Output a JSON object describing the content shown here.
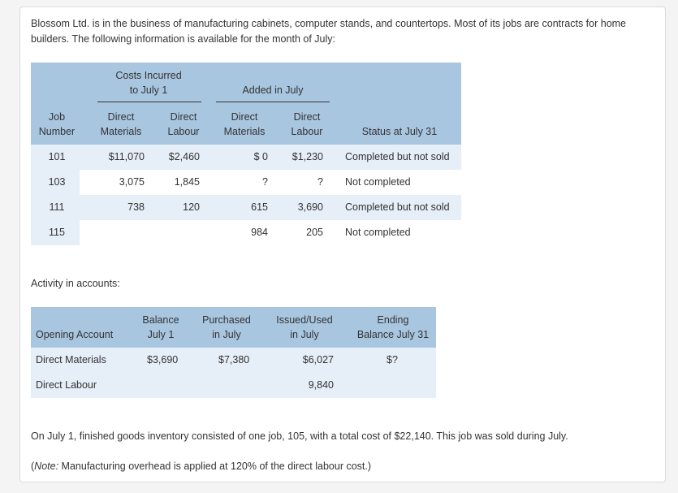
{
  "intro": "Blossom Ltd. is in the business of manufacturing cabinets, computer stands, and countertops. Most of its jobs are contracts for home builders. The following information is available for the month of July:",
  "table1": {
    "group_costs_line1": "Costs Incurred",
    "group_costs_line2": "to July 1",
    "group_added": "Added in July",
    "col_job_1": "Job",
    "col_job_2": "Number",
    "col_dm_1": "Direct",
    "col_dm_2": "Materials",
    "col_dl_1": "Direct",
    "col_dl_2": "Labour",
    "col_adm_1": "Direct",
    "col_adm_2": "Materials",
    "col_adl_1": "Direct",
    "col_adl_2": "Labour",
    "col_status": "Status at July 31",
    "rows": [
      {
        "job": "101",
        "dm": "$11,070",
        "dl": "$2,460",
        "adm": "$ 0",
        "adl": "$1,230",
        "status": "Completed but not sold"
      },
      {
        "job": "103",
        "dm": "3,075",
        "dl": "1,845",
        "adm": "?",
        "adl": "?",
        "status": "Not completed"
      },
      {
        "job": "111",
        "dm": "738",
        "dl": "120",
        "adm": "615",
        "adl": "3,690",
        "status": "Completed but not sold"
      },
      {
        "job": "115",
        "dm": "",
        "dl": "",
        "adm": "984",
        "adl": "205",
        "status": "Not completed"
      }
    ]
  },
  "activity_label": "Activity in accounts:",
  "table2": {
    "col_account": "Opening Account",
    "col_balance_1": "Balance",
    "col_balance_2": "July 1",
    "col_purchased_1": "Purchased",
    "col_purchased_2": "in July",
    "col_issued_1": "Issued/Used",
    "col_issued_2": "in July",
    "col_ending_1": "Ending",
    "col_ending_2": "Balance July 31",
    "rows": [
      {
        "account": "Direct Materials",
        "balance": "$3,690",
        "purchased": "$7,380",
        "issued": "$6,027",
        "ending": "$?"
      },
      {
        "account": "Direct Labour",
        "balance": "",
        "purchased": "",
        "issued": "9,840",
        "ending": ""
      }
    ]
  },
  "footer_text": "On July 1, finished goods inventory consisted of one job, 105, with a total cost of $22,140. This job was sold during July.",
  "note_label": "Note:",
  "note_text": "Manufacturing overhead is applied at 120% of the direct labour cost.)",
  "note_open": "("
}
